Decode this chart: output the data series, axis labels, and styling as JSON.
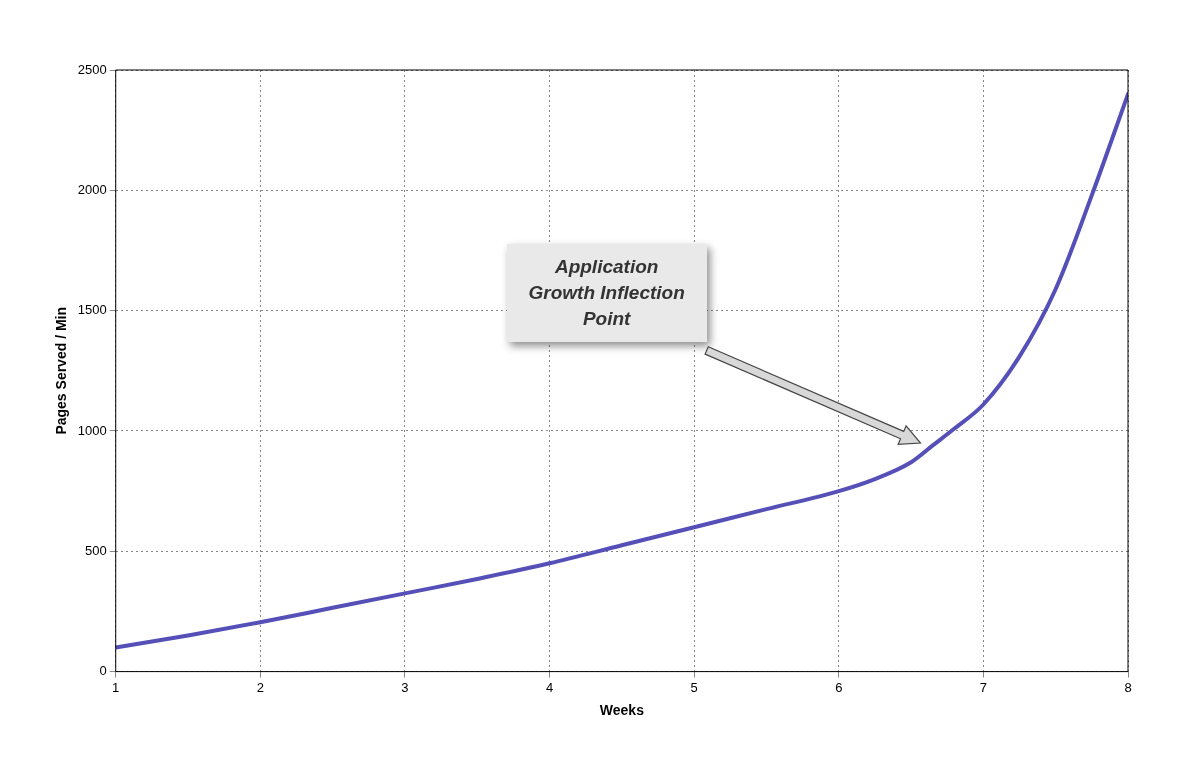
{
  "chart_data": {
    "type": "line",
    "xlabel": "Weeks",
    "ylabel": "Pages Served / Min",
    "xlim": [
      1,
      8
    ],
    "xticks": [
      1,
      2,
      3,
      4,
      5,
      6,
      7,
      8
    ],
    "ylim": [
      0,
      2500
    ],
    "yticks": [
      0,
      500,
      1000,
      1500,
      2000,
      2500
    ],
    "grid": true,
    "marker": "none",
    "line_style": "solid",
    "series": [
      {
        "color": "#5550b8",
        "x": [
          1,
          1.5,
          2,
          2.5,
          3,
          3.5,
          4,
          4.5,
          5,
          5.5,
          6,
          6.25,
          6.5,
          6.65,
          6.8,
          7,
          7.25,
          7.5,
          7.75,
          8
        ],
        "values": [
          100,
          150,
          205,
          265,
          325,
          385,
          450,
          525,
          600,
          675,
          750,
          800,
          870,
          940,
          1010,
          1110,
          1310,
          1590,
          1980,
          2400
        ]
      }
    ],
    "annotations": [
      "Application Growth Inflection Point"
    ]
  }
}
